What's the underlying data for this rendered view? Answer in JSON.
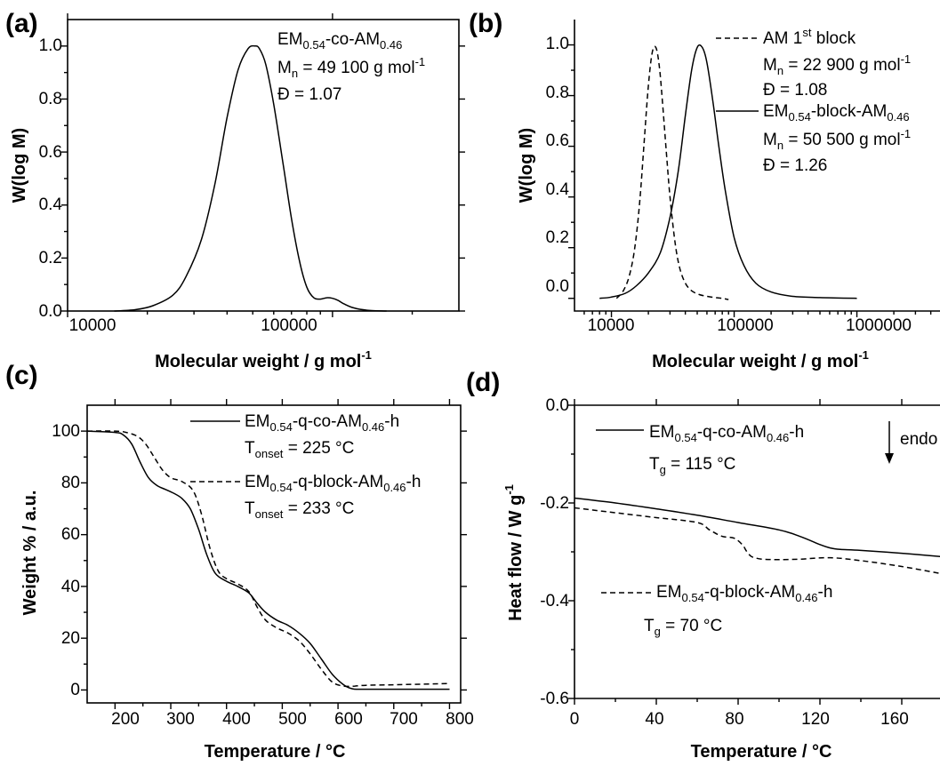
{
  "chart_data": [
    {
      "panel_label": "(a)",
      "type": "line",
      "xscale": "log",
      "xlim": [
        10000,
        300000
      ],
      "ylim": [
        0,
        1.1
      ],
      "xticks": [
        "10000",
        "100000"
      ],
      "yticks": [
        "0.0",
        "0.2",
        "0.4",
        "0.6",
        "0.8",
        "1.0"
      ],
      "xlabel": "Molecular weight / g mol",
      "xlabel_sup": "-1",
      "ylabel": "W(log M)",
      "annotation": {
        "sample_main": "EM",
        "sample_sub1": "0.54",
        "sample_mid": "-co-AM",
        "sample_sub2": "0.46",
        "mn_main": "M",
        "mn_sub": "n",
        "mn_value": " = 49 100 g mol",
        "mn_sup": "-1",
        "dispersity": "Đ = 1.07"
      },
      "series": [
        {
          "style": "solid",
          "x": [
            15000,
            18000,
            21000,
            25000,
            28000,
            32000,
            36000,
            40000,
            44000,
            48000,
            51000,
            53000,
            56000,
            60000,
            65000,
            70000,
            75000,
            80000,
            85000,
            90000,
            95000,
            100000,
            105000,
            110000,
            120000,
            135000,
            160000
          ],
          "y": [
            0.0,
            0.005,
            0.02,
            0.06,
            0.13,
            0.27,
            0.48,
            0.73,
            0.91,
            0.99,
            1.0,
            0.99,
            0.93,
            0.78,
            0.56,
            0.35,
            0.19,
            0.09,
            0.05,
            0.045,
            0.05,
            0.048,
            0.04,
            0.028,
            0.012,
            0.003,
            0.0
          ]
        }
      ]
    },
    {
      "panel_label": "(b)",
      "type": "line",
      "xscale": "log",
      "xlim": [
        5000,
        5000000
      ],
      "ylim": [
        -0.05,
        1.1
      ],
      "xticks": [
        "10000",
        "100000",
        "1000000"
      ],
      "yticks": [
        "0.0",
        "0.2",
        "0.4",
        "0.6",
        "0.8",
        "1.0"
      ],
      "xlabel": "Molecular weight / g mol",
      "xlabel_sup": "-1",
      "ylabel": "W(log M)",
      "legend": [
        {
          "style": "dashed",
          "name_main": "AM 1",
          "name_sup": "st",
          "name_end": " block",
          "mn_main": "M",
          "mn_sub": "n",
          "mn_value": " = 22 900 g mol",
          "mn_sup": "-1",
          "dispersity": "Đ = 1.08"
        },
        {
          "style": "solid",
          "name_main": "EM",
          "name_sub1": "0.54",
          "name_mid": "-block-AM",
          "name_sub2": "0.46",
          "mn_main": "M",
          "mn_sub": "n",
          "mn_value": " = 50 500 g mol",
          "mn_sup": "-1",
          "dispersity": "Đ = 1.26"
        }
      ],
      "series": [
        {
          "style": "dashed",
          "x": [
            11000,
            12500,
            14000,
            15500,
            17000,
            18500,
            20000,
            21500,
            23000,
            24500,
            26000,
            28000,
            30000,
            33000,
            36000,
            40000,
            45000,
            52000,
            60000,
            70000,
            80000,
            90000
          ],
          "y": [
            0.0,
            0.03,
            0.09,
            0.2,
            0.38,
            0.62,
            0.84,
            0.97,
            0.99,
            0.92,
            0.78,
            0.58,
            0.4,
            0.22,
            0.12,
            0.06,
            0.03,
            0.015,
            0.008,
            0.003,
            0.0,
            -0.005
          ]
        },
        {
          "style": "solid",
          "x": [
            8000,
            10000,
            13000,
            16000,
            20000,
            25000,
            30000,
            35000,
            40000,
            45000,
            50000,
            55000,
            60000,
            67000,
            75000,
            85000,
            100000,
            120000,
            150000,
            200000,
            300000,
            500000,
            1000000
          ],
          "y": [
            0.0,
            0.005,
            0.02,
            0.05,
            0.1,
            0.18,
            0.32,
            0.5,
            0.72,
            0.9,
            0.99,
            0.99,
            0.93,
            0.78,
            0.6,
            0.42,
            0.24,
            0.13,
            0.06,
            0.025,
            0.008,
            0.003,
            0.0
          ]
        }
      ]
    },
    {
      "panel_label": "(c)",
      "type": "line",
      "xlim": [
        150,
        820
      ],
      "ylim": [
        -5,
        110
      ],
      "xticks": [
        "200",
        "300",
        "400",
        "500",
        "600",
        "700",
        "800"
      ],
      "yticks": [
        "0",
        "20",
        "40",
        "60",
        "80",
        "100"
      ],
      "xlabel": "Temperature / °C",
      "ylabel": "Weight % / a.u.",
      "legend": [
        {
          "style": "solid",
          "name_main": "EM",
          "name_sub1": "0.54",
          "name_mid": "-q-co-AM",
          "name_sub2": "0.46",
          "name_end": "-h",
          "t_main": "T",
          "t_sub": "onset",
          "t_value": " = 225 °C"
        },
        {
          "style": "dashed",
          "name_main": "EM",
          "name_sub1": "0.54",
          "name_mid": "-q-block-AM",
          "name_sub2": "0.46",
          "name_end": "-h",
          "t_main": "T",
          "t_sub": "onset",
          "t_value": " = 233 °C"
        }
      ],
      "series": [
        {
          "style": "solid",
          "x": [
            150,
            200,
            215,
            230,
            245,
            260,
            275,
            290,
            305,
            320,
            335,
            350,
            365,
            380,
            400,
            420,
            440,
            455,
            470,
            490,
            510,
            530,
            550,
            570,
            590,
            610,
            625,
            640,
            700,
            800
          ],
          "y": [
            100,
            99.5,
            98.5,
            95,
            88,
            82,
            79,
            77.5,
            76,
            74,
            70,
            62,
            52,
            45,
            42,
            40,
            37.5,
            33.5,
            30,
            27,
            25,
            22,
            18,
            12,
            6,
            2,
            0.5,
            0.3,
            0.3,
            0.3
          ]
        },
        {
          "style": "dashed",
          "x": [
            150,
            200,
            220,
            240,
            255,
            270,
            285,
            300,
            320,
            340,
            355,
            370,
            385,
            400,
            420,
            440,
            455,
            470,
            490,
            510,
            530,
            550,
            570,
            590,
            610,
            630,
            650,
            700,
            800
          ],
          "y": [
            100,
            100,
            99.5,
            98,
            95,
            90,
            85,
            82,
            80.5,
            77,
            68,
            55,
            46,
            43,
            41,
            38,
            32,
            27,
            24,
            22,
            19,
            14,
            8,
            3,
            1.5,
            1.5,
            1.8,
            2,
            2.5
          ]
        }
      ]
    },
    {
      "panel_label": "(d)",
      "type": "line",
      "xlim": [
        0,
        180
      ],
      "ylim": [
        -0.6,
        0.0
      ],
      "xticks": [
        "0",
        "40",
        "80",
        "120",
        "160"
      ],
      "yticks": [
        "0.0",
        "-0.2",
        "-0.4",
        "-0.6"
      ],
      "xlabel": "Temperature / °C",
      "ylabel": "Heat flow / W g",
      "ylabel_sup": "-1",
      "endo_label": "endo",
      "legend": [
        {
          "style": "solid",
          "name_main": "EM",
          "name_sub1": "0.54",
          "name_mid": "-q-co-AM",
          "name_sub2": "0.46",
          "name_end": "-h",
          "t_main": "T",
          "t_sub": "g",
          "t_value": " = 115 °C"
        },
        {
          "style": "dashed",
          "name_main": "EM",
          "name_sub1": "0.54",
          "name_mid": "-q-block-AM",
          "name_sub2": "0.46",
          "name_end": "-h",
          "t_main": "T",
          "t_sub": "g",
          "t_value": " = 70 °C"
        }
      ],
      "series": [
        {
          "style": "solid",
          "x": [
            0,
            20,
            40,
            60,
            80,
            100,
            110,
            120,
            125,
            130,
            140,
            160,
            180
          ],
          "y": [
            -0.19,
            -0.2,
            -0.212,
            -0.225,
            -0.24,
            -0.255,
            -0.268,
            -0.285,
            -0.292,
            -0.295,
            -0.297,
            -0.303,
            -0.31
          ]
        },
        {
          "style": "dashed",
          "x": [
            0,
            20,
            40,
            60,
            66,
            72,
            78,
            82,
            84,
            86,
            88,
            92,
            100,
            110,
            125,
            140,
            160,
            180
          ],
          "y": [
            -0.21,
            -0.22,
            -0.23,
            -0.24,
            -0.255,
            -0.268,
            -0.272,
            -0.285,
            -0.298,
            -0.308,
            -0.312,
            -0.315,
            -0.316,
            -0.315,
            -0.312,
            -0.318,
            -0.33,
            -0.345
          ]
        }
      ]
    }
  ]
}
